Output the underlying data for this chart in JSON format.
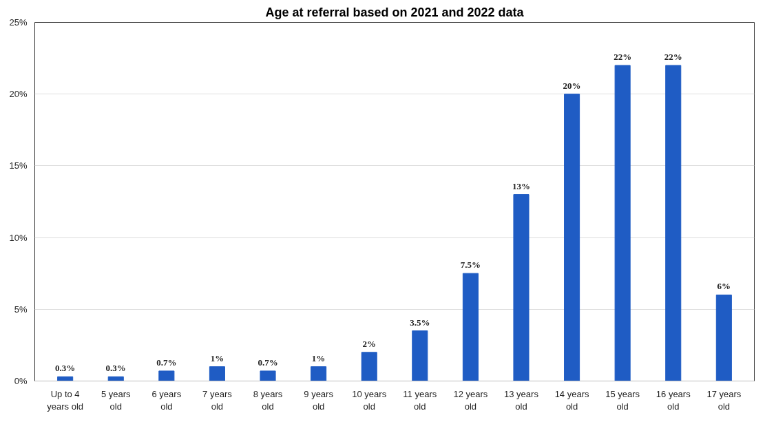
{
  "chart_data": {
    "type": "bar",
    "title": "Age at referral based on 2021 and 2022 data",
    "categories": [
      "Up to 4 years old",
      "5 years old",
      "6 years old",
      "7 years old",
      "8 years old",
      "9 years old",
      "10 years old",
      "11 years old",
      "12 years old",
      "13 years old",
      "14 years old",
      "15 years old",
      "16 years old",
      "17 years old"
    ],
    "values": [
      0.3,
      0.3,
      0.7,
      1,
      0.7,
      1,
      2,
      3.5,
      7.5,
      13,
      20,
      22,
      22,
      6
    ],
    "value_labels": [
      "0.3%",
      "0.3%",
      "0.7%",
      "1%",
      "0.7%",
      "1%",
      "2%",
      "3.5%",
      "7.5%",
      "13%",
      "20%",
      "22%",
      "22%",
      "6%"
    ],
    "color": "#1f5cc4",
    "ylim": [
      0,
      25
    ],
    "yticks": [
      {
        "value": 0,
        "label": "0%"
      },
      {
        "value": 5,
        "label": "5%"
      },
      {
        "value": 10,
        "label": "10%"
      },
      {
        "value": 15,
        "label": "15%"
      },
      {
        "value": 20,
        "label": "20%"
      },
      {
        "value": 25,
        "label": "25%"
      }
    ],
    "grid": "y"
  }
}
